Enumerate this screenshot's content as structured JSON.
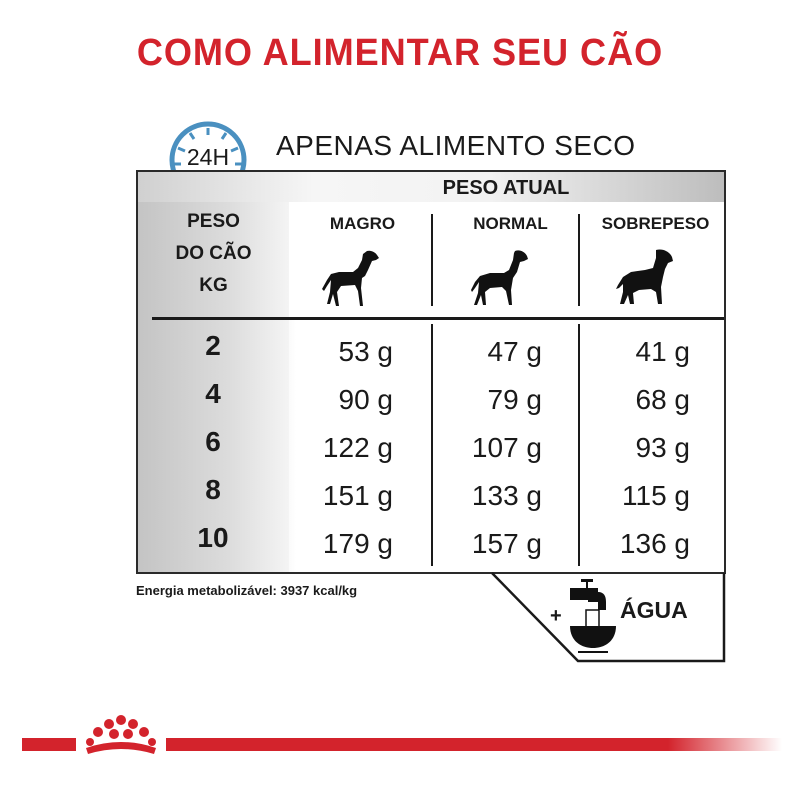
{
  "title": "COMO ALIMENTAR SEU CÃO",
  "clock_label": "24H",
  "subtitle": "APENAS ALIMENTO SECO",
  "table": {
    "group_header": "PESO ATUAL",
    "row_header": [
      "PESO",
      "DO CÃO",
      "KG"
    ],
    "columns": [
      "MAGRO",
      "NORMAL",
      "SOBREPESO"
    ],
    "rows": [
      {
        "kg": "2",
        "values": [
          "53 g",
          "47 g",
          "41 g"
        ]
      },
      {
        "kg": "4",
        "values": [
          "90 g",
          "79 g",
          "68 g"
        ]
      },
      {
        "kg": "6",
        "values": [
          "122 g",
          "107 g",
          "93 g"
        ]
      },
      {
        "kg": "8",
        "values": [
          "151 g",
          "133 g",
          "115 g"
        ]
      },
      {
        "kg": "10",
        "values": [
          "179 g",
          "157 g",
          "136 g"
        ]
      }
    ]
  },
  "energy": "Energia metabolizável: 3937 kcal/kg",
  "water": {
    "plus": "+",
    "label": "ÁGUA"
  },
  "colors": {
    "brand_red": "#d3232c",
    "clock_blue": "#4a90c0"
  },
  "icons": [
    "clock-24h-icon",
    "dog-thin-icon",
    "dog-normal-icon",
    "dog-overweight-icon",
    "water-tap-bowl-icon",
    "royal-canin-crown-logo"
  ]
}
